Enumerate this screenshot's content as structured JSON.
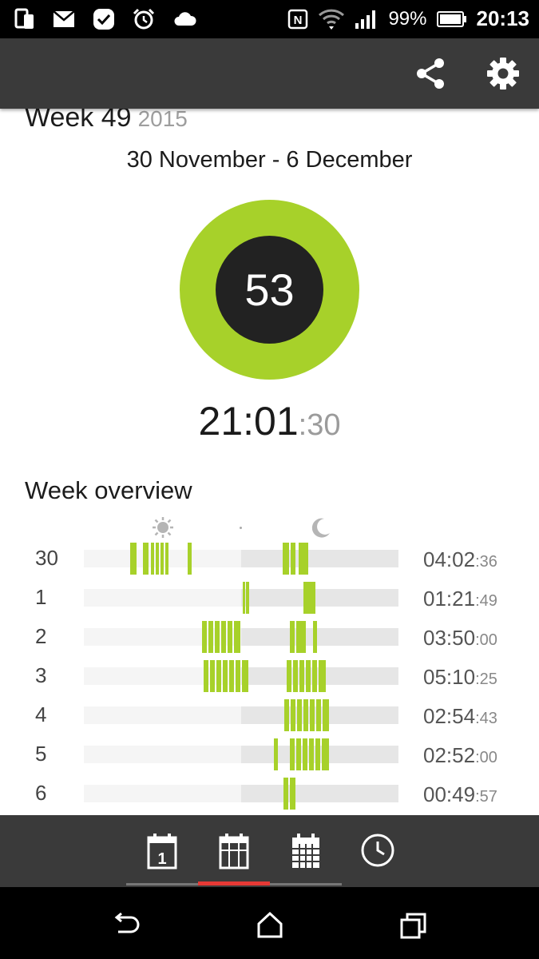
{
  "status_bar": {
    "left_icons": [
      "phone-sync-icon",
      "mail-icon",
      "check-badge-icon",
      "alarm-icon",
      "cloud-icon"
    ],
    "right_icons": [
      "nfc-icon",
      "wifi-icon",
      "signal-icon",
      "battery-icon"
    ],
    "battery_percent": "99%",
    "time": "20:13"
  },
  "app_bar": {
    "actions": [
      "share-icon",
      "settings-icon"
    ]
  },
  "summary": {
    "week_label": "Week 49",
    "year": "2015",
    "date_range": "30 November - 6 December",
    "score": "53",
    "score_ring_color": "#a7d12a",
    "total_time_main": "21:01",
    "total_time_seconds": ":30"
  },
  "overview": {
    "title": "Week overview",
    "legend_icons": [
      "sun-icon",
      "moon-icon"
    ],
    "bar_color": "#a7d12a",
    "rows": [
      {
        "day": "30",
        "duration_main": "04:02",
        "duration_sec": ":36"
      },
      {
        "day": "1",
        "duration_main": "01:21",
        "duration_sec": ":49"
      },
      {
        "day": "2",
        "duration_main": "03:50",
        "duration_sec": ":00"
      },
      {
        "day": "3",
        "duration_main": "05:10",
        "duration_sec": ":25"
      },
      {
        "day": "4",
        "duration_main": "02:54",
        "duration_sec": ":43"
      },
      {
        "day": "5",
        "duration_main": "02:52",
        "duration_sec": ":00"
      },
      {
        "day": "6",
        "duration_main": "00:49",
        "duration_sec": ":57"
      }
    ]
  },
  "tabs": {
    "items": [
      "day-calendar-icon",
      "week-calendar-icon",
      "month-calendar-icon",
      "clock-icon"
    ],
    "active": "week-calendar-icon",
    "active_color": "#e53935"
  },
  "nav_bar": {
    "buttons": [
      "back-icon",
      "home-icon",
      "recents-icon"
    ]
  }
}
